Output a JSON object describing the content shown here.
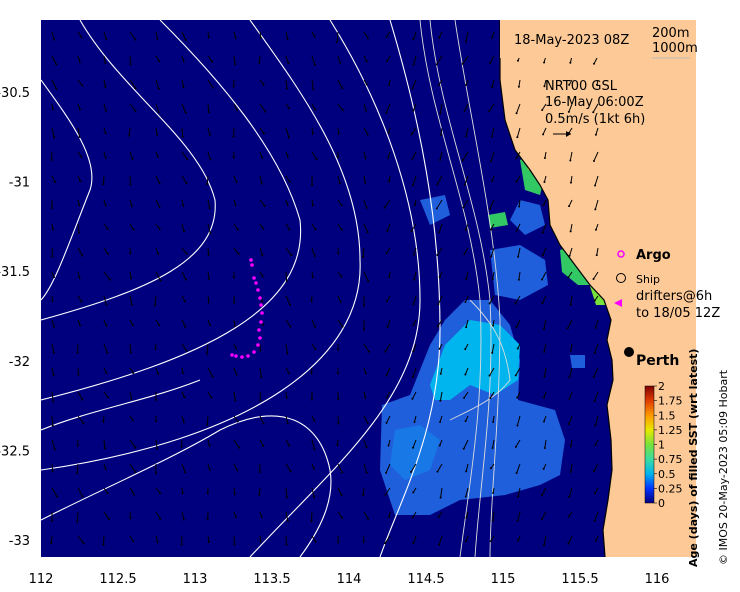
{
  "map": {
    "date_label": "18-May-2023 08Z",
    "contours": [
      "200m",
      "1000m"
    ],
    "model_line1": "NRT00 GSL",
    "model_line2": "16-May 06:00Z",
    "model_line3": "0.5m/s (1kt 6h)",
    "lon_ticks": [
      "112",
      "112.5",
      "113",
      "113.5",
      "114",
      "114.5",
      "115",
      "115.5",
      "116"
    ],
    "lat_ticks": [
      "-30.5",
      "-31",
      "-31.5",
      "-32",
      "-32.5",
      "-33"
    ],
    "city": "Perth",
    "colors": {
      "ocean": "#00007f",
      "land": "#fdc996",
      "cyan": "#00b5ee",
      "mid_blue": "#1f5fdc",
      "green": "#32c864",
      "drifter": "#ff00ff"
    }
  },
  "legend": {
    "argo_label": "Argo",
    "ship_label": "Ship",
    "drifters_line1": "drifters@6h",
    "drifters_line2": "to 18/05 12Z"
  },
  "colorbar": {
    "ticks": [
      "2",
      "1.75",
      "1.5",
      "1.25",
      "1",
      "0.75",
      "0.5",
      "0.25",
      "0"
    ],
    "title": "Age (days) of filled SST (wrt latest)"
  },
  "credit": "© IMOS 20-May-2023 05:09 Hobart"
}
